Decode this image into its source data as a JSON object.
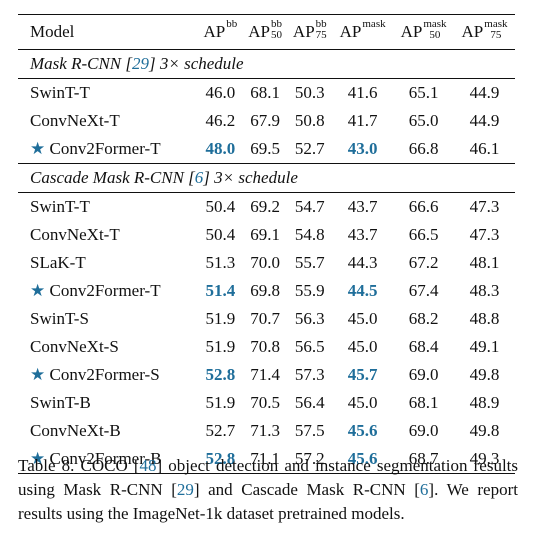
{
  "table": {
    "header": {
      "model": "Model",
      "cols": [
        {
          "base": "AP",
          "sup": "bb",
          "sub": ""
        },
        {
          "base": "AP",
          "sup": "bb",
          "sub": "50"
        },
        {
          "base": "AP",
          "sup": "bb",
          "sub": "75"
        },
        {
          "base": "AP",
          "sup": "mask",
          "sub": ""
        },
        {
          "base": "AP",
          "sup": "mask",
          "sub": "50"
        },
        {
          "base": "AP",
          "sup": "mask",
          "sub": "75"
        }
      ]
    },
    "section1": {
      "prefix": "Mask R-CNN [",
      "cite": "29",
      "suffix": "] 3× schedule",
      "rows": [
        {
          "model": "SwinT-T",
          "star": false,
          "v": [
            "46.0",
            "68.1",
            "50.3",
            "41.6",
            "65.1",
            "44.9"
          ],
          "best": []
        },
        {
          "model": "ConvNeXt-T",
          "star": false,
          "v": [
            "46.2",
            "67.9",
            "50.8",
            "41.7",
            "65.0",
            "44.9"
          ],
          "best": []
        },
        {
          "model": "Conv2Former-T",
          "star": true,
          "v": [
            "48.0",
            "69.5",
            "52.7",
            "43.0",
            "66.8",
            "46.1"
          ],
          "best": [
            0,
            3
          ]
        }
      ]
    },
    "section2": {
      "prefix": "Cascade Mask R-CNN [",
      "cite": "6",
      "suffix": "] 3× schedule",
      "rows": [
        {
          "model": "SwinT-T",
          "star": false,
          "v": [
            "50.4",
            "69.2",
            "54.7",
            "43.7",
            "66.6",
            "47.3"
          ],
          "best": []
        },
        {
          "model": "ConvNeXt-T",
          "star": false,
          "v": [
            "50.4",
            "69.1",
            "54.8",
            "43.7",
            "66.5",
            "47.3"
          ],
          "best": []
        },
        {
          "model": "SLaK-T",
          "star": false,
          "v": [
            "51.3",
            "70.0",
            "55.7",
            "44.3",
            "67.2",
            "48.1"
          ],
          "best": []
        },
        {
          "model": "Conv2Former-T",
          "star": true,
          "v": [
            "51.4",
            "69.8",
            "55.9",
            "44.5",
            "67.4",
            "48.3"
          ],
          "best": [
            0,
            3
          ]
        },
        {
          "model": "SwinT-S",
          "star": false,
          "v": [
            "51.9",
            "70.7",
            "56.3",
            "45.0",
            "68.2",
            "48.8"
          ],
          "best": []
        },
        {
          "model": "ConvNeXt-S",
          "star": false,
          "v": [
            "51.9",
            "70.8",
            "56.5",
            "45.0",
            "68.4",
            "49.1"
          ],
          "best": []
        },
        {
          "model": "Conv2Former-S",
          "star": true,
          "v": [
            "52.8",
            "71.4",
            "57.3",
            "45.7",
            "69.0",
            "49.8"
          ],
          "best": [
            0,
            3
          ]
        },
        {
          "model": "SwinT-B",
          "star": false,
          "v": [
            "51.9",
            "70.5",
            "56.4",
            "45.0",
            "68.1",
            "48.9"
          ],
          "best": []
        },
        {
          "model": "ConvNeXt-B",
          "star": false,
          "v": [
            "52.7",
            "71.3",
            "57.5",
            "45.6",
            "69.0",
            "49.8"
          ],
          "best": [
            3
          ]
        },
        {
          "model": "Conv2Former-B",
          "star": true,
          "v": [
            "52.8",
            "71.1",
            "57.2",
            "45.6",
            "68.7",
            "49.3"
          ],
          "best": [
            0,
            3
          ]
        }
      ]
    }
  },
  "caption": {
    "p1": "Table 8. COCO [",
    "c1": "48",
    "p2": "] object detection and instance segmentation results using Mask R-CNN [",
    "c2": "29",
    "p3": "] and Cascade Mask R-CNN [",
    "c3": "6",
    "p4": "]. We report results using the ImageNet-1k dataset pretrained models."
  },
  "icons": {
    "star": "star-icon",
    "star_glyph": "★"
  },
  "colors": {
    "accent": "#1f6e9a"
  }
}
